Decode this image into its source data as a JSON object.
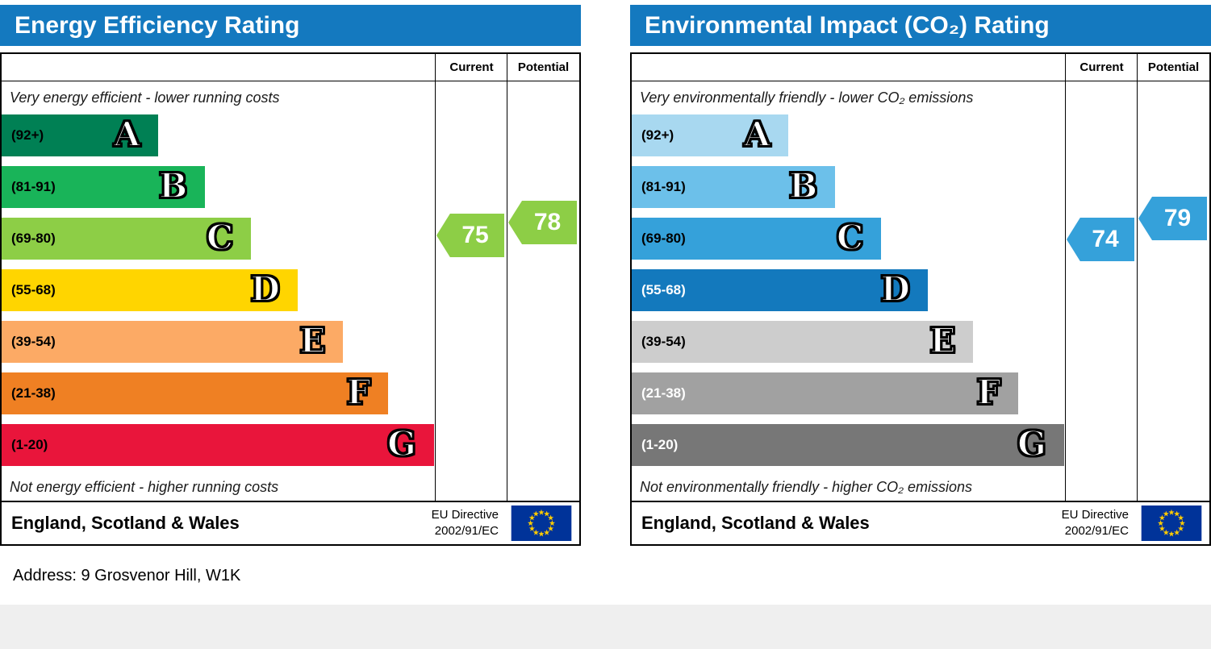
{
  "colors": {
    "title_bar": "#1479bf",
    "flag_blue": "#003399",
    "flag_star": "#ffcc00"
  },
  "address_line": "Address: 9 Grosvenor Hill, W1K",
  "chart_data": [
    {
      "type": "bar",
      "subtype": "epc-rating-scale",
      "title": "Energy Efficiency Rating",
      "columns": {
        "current": "Current",
        "potential": "Potential"
      },
      "top_note": "Very energy efficient - lower running costs",
      "bottom_note": "Not energy efficient - higher running costs",
      "region": "England, Scotland & Wales",
      "directive_line1": "EU Directive",
      "directive_line2": "2002/91/EC",
      "current": {
        "value": 75,
        "band": "C",
        "color": "#8dce46"
      },
      "potential": {
        "value": 78,
        "band": "C",
        "color": "#8dce46"
      },
      "bands": [
        {
          "letter": "A",
          "range_label": "(92+)",
          "min": 92,
          "max": 100,
          "color": "#008054",
          "width_pct": 36.0,
          "label_color": "#000000"
        },
        {
          "letter": "B",
          "range_label": "(81-91)",
          "min": 81,
          "max": 91,
          "color": "#19b459",
          "width_pct": 46.9,
          "label_color": "#000000"
        },
        {
          "letter": "C",
          "range_label": "(69-80)",
          "min": 69,
          "max": 80,
          "color": "#8dce46",
          "width_pct": 57.5,
          "label_color": "#000000"
        },
        {
          "letter": "D",
          "range_label": "(55-68)",
          "min": 55,
          "max": 68,
          "color": "#ffd500",
          "width_pct": 68.2,
          "label_color": "#000000"
        },
        {
          "letter": "E",
          "range_label": "(39-54)",
          "min": 39,
          "max": 54,
          "color": "#fcaa65",
          "width_pct": 78.7,
          "label_color": "#000000"
        },
        {
          "letter": "F",
          "range_label": "(21-38)",
          "min": 21,
          "max": 38,
          "color": "#ef8023",
          "width_pct": 89.1,
          "label_color": "#000000"
        },
        {
          "letter": "G",
          "range_label": "(1-20)",
          "min": 1,
          "max": 20,
          "color": "#e9153b",
          "width_pct": 99.6,
          "label_color": "#000000"
        }
      ]
    },
    {
      "type": "bar",
      "subtype": "epc-rating-scale",
      "title": "Environmental Impact (CO₂) Rating",
      "columns": {
        "current": "Current",
        "potential": "Potential"
      },
      "top_note": "Very environmentally friendly - lower CO₂ emissions",
      "bottom_note": "Not environmentally friendly - higher CO₂ emissions",
      "region": "England, Scotland & Wales",
      "directive_line1": "EU Directive",
      "directive_line2": "2002/91/EC",
      "current": {
        "value": 74,
        "band": "C",
        "color": "#35a1da"
      },
      "potential": {
        "value": 79,
        "band": "C",
        "color": "#35a1da"
      },
      "bands": [
        {
          "letter": "A",
          "range_label": "(92+)",
          "min": 92,
          "max": 100,
          "color": "#a8d8f0",
          "width_pct": 36.0,
          "label_color": "#000000"
        },
        {
          "letter": "B",
          "range_label": "(81-91)",
          "min": 81,
          "max": 91,
          "color": "#6cc0ea",
          "width_pct": 46.9,
          "label_color": "#000000"
        },
        {
          "letter": "C",
          "range_label": "(69-80)",
          "min": 69,
          "max": 80,
          "color": "#35a1da",
          "width_pct": 57.5,
          "label_color": "#000000"
        },
        {
          "letter": "D",
          "range_label": "(55-68)",
          "min": 55,
          "max": 68,
          "color": "#1379bd",
          "width_pct": 68.2,
          "label_color": "#ffffff"
        },
        {
          "letter": "E",
          "range_label": "(39-54)",
          "min": 39,
          "max": 54,
          "color": "#cdcdcd",
          "width_pct": 78.7,
          "label_color": "#000000"
        },
        {
          "letter": "F",
          "range_label": "(21-38)",
          "min": 21,
          "max": 38,
          "color": "#a1a1a1",
          "width_pct": 89.1,
          "label_color": "#ffffff"
        },
        {
          "letter": "G",
          "range_label": "(1-20)",
          "min": 1,
          "max": 20,
          "color": "#777777",
          "width_pct": 99.6,
          "label_color": "#ffffff"
        }
      ]
    }
  ]
}
